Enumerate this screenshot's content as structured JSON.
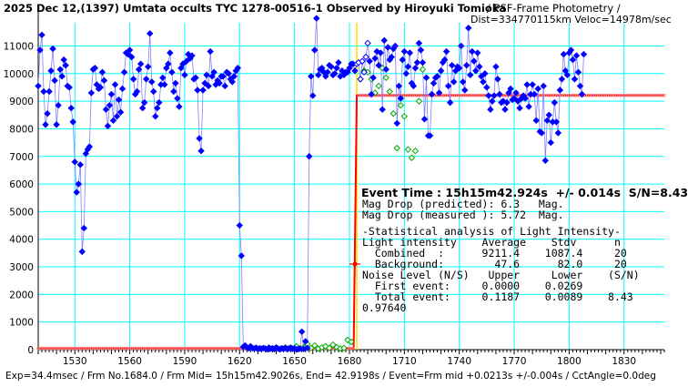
{
  "header": {
    "title": "2025 Dec 12,(1397) Umtata occults TYC 1278-00516-1 Observed by Hiroyuki Tomioka",
    "method": "/ PSF-Frame Photometry /",
    "distance": "Dist=334770115km Veloc=14978m/sec"
  },
  "footer": {
    "text": "Exp=34.4msec / Frm No.1684.0 / Frm Mid= 15h15m42.9026s, End= 42.9198s / Event=Frm mid +0.0213s +/-0.004s / CctAngle=0.0deg"
  },
  "panel": {
    "event_time": "Event Time : 15h15m42.924s  +/- 0.014s  S/N=8.43",
    "mag_drop_predicted": "Mag Drop (predicted): 6.3   Mag.",
    "mag_drop_measured": "Mag Drop (measured ): 5.72  Mag.",
    "stat_title": "-Statistical analysis of Light Intensity-",
    "stat_header": "Light intensity    Average    Stdv      n",
    "combined": "  Combined  :      9211.4    1087.4     20",
    "background": "  Background:        47.6      82.0     20",
    "noise_header": "Noise Level (N/S)   Upper     Lower    (S/N)",
    "first_event": "  First event:     0.0000    0.0269",
    "total_event": "  Total event:     0.1187    0.0089    8.43",
    "ratio": "0.97640"
  },
  "colors": {
    "grid": "#00ffff",
    "main_series": "#0000ff",
    "connector": "#8080ff",
    "comp_series": "#00aa00",
    "fit_line": "#ff0000",
    "fit_marker": "#ff8080",
    "event_line": "#ffdd00",
    "background": "#ffffff"
  },
  "chart_data": {
    "type": "scatter",
    "x_ticks": [
      1530,
      1560,
      1590,
      1620,
      1650,
      1680,
      1710,
      1740,
      1770,
      1800,
      1830
    ],
    "y_ticks": [
      0,
      1000,
      2000,
      3000,
      4000,
      5000,
      6000,
      7000,
      8000,
      9000,
      10000,
      11000
    ],
    "xlim": [
      1510,
      1852
    ],
    "ylim": [
      0,
      12500
    ],
    "grid": true,
    "event_frame": 1684,
    "fit": {
      "high": 9211.4,
      "low": 47.6,
      "drop_start": 1682.3,
      "rise_end": 1684.0
    },
    "series": [
      {
        "name": "",
        "color": "#0000ff",
        "x_start": 1510,
        "values": [
          9550,
          10850,
          11400,
          9350,
          8150,
          8550,
          9350,
          10100,
          10900,
          9750,
          8150,
          8850,
          10150,
          9900,
          10500,
          10300,
          9550,
          9500,
          8750,
          8250,
          6800,
          5700,
          6000,
          6700,
          3550,
          4400,
          7100,
          7250,
          7350,
          9300,
          10150,
          10200,
          9600,
          9450,
          9500,
          10050,
          9750,
          8700,
          8100,
          8850,
          9250,
          8300,
          9600,
          8450,
          9050,
          8600,
          9450,
          10050,
          10750,
          10700,
          10850,
          10600,
          9800,
          9250,
          9350,
          10150,
          10350,
          8750,
          8950,
          9800,
          10250,
          11450,
          9700,
          9350,
          8450,
          8750,
          8950,
          9600,
          9850,
          9600,
          10200,
          10350,
          10750,
          10050,
          9350,
          9650,
          9100,
          8800,
          10200,
          10350,
          9950,
          10450,
          10700,
          10550,
          10650,
          9800,
          9850,
          9400,
          7650,
          7200,
          9400,
          9650,
          9950,
          9550,
          10800,
          9900,
          10050,
          9600,
          9750,
          9650,
          9900,
          9900,
          9550,
          10050,
          10000,
          9800,
          9700,
          9900,
          10100,
          10200,
          4500,
          3400,
          100,
          150,
          80,
          50,
          120,
          60,
          40,
          70,
          20,
          50,
          30,
          60,
          40,
          10,
          70,
          30,
          50,
          20,
          80,
          40,
          10,
          50,
          30,
          60,
          20,
          40,
          70,
          30,
          50,
          10,
          20,
          40,
          650,
          30,
          300,
          60,
          7000,
          9900,
          9200,
          10850,
          12000,
          9950,
          10150,
          10200,
          10050,
          9900,
          10050,
          10300,
          10250,
          9950,
          10000,
          10200,
          10400,
          9900,
          10100,
          9950,
          10050,
          10050,
          10200,
          10350,
          10350,
          10100,
          10350,
          10400,
          9800,
          10450,
          10050,
          10600,
          11100,
          10450,
          9250,
          9850,
          10550,
          10800,
          10300,
          10750,
          8700,
          11200,
          10150,
          10950,
          10500,
          10600,
          10900,
          11000,
          8200,
          9550,
          9100,
          10500,
          10800,
          10000,
          10250,
          10750,
          9650,
          9550,
          10200,
          10400,
          11100,
          10850,
          10400,
          8350,
          9850,
          7750,
          7750,
          9250,
          9650,
          9850,
          9900,
          9300,
          10100,
          10400,
          10500,
          10800,
          9550,
          8950,
          10300,
          9700,
          10100,
          10250,
          10200,
          11000,
          9700,
          9400,
          10300,
          11650,
          9950,
          10800,
          10450,
          10100,
          10750,
          10250,
          9900,
          9700,
          10000,
          9500,
          9200,
          8700,
          9000,
          9200,
          10250,
          9800,
          9250,
          8950,
          9000,
          8700,
          8950,
          9300,
          9450,
          9050,
          9100,
          9300,
          9000,
          8750,
          9100,
          9200,
          9100,
          9600,
          8800,
          9250,
          9600,
          9250,
          8300,
          9450,
          7900,
          7850,
          9550,
          6850,
          8300,
          8500,
          7500,
          8250,
          8950,
          8250,
          7850,
          9400,
          9800,
          10700,
          10100,
          9950,
          10750,
          10850,
          10500,
          9800,
          10650,
          10050,
          9550,
          9250,
          10700
        ]
      },
      {
        "name": "",
        "color": "#00aa00",
        "x": [
          1645,
          1647,
          1649,
          1651,
          1653,
          1655,
          1657,
          1659,
          1661,
          1663,
          1665,
          1667,
          1669,
          1671,
          1673,
          1675,
          1677,
          1679,
          1681,
          1686,
          1688,
          1690,
          1692,
          1694,
          1696,
          1698,
          1700,
          1702,
          1704,
          1706,
          1708,
          1710,
          1712,
          1714,
          1716,
          1718,
          1720,
          1722
        ],
        "values": [
          80,
          50,
          30,
          120,
          40,
          90,
          200,
          60,
          150,
          40,
          80,
          120,
          60,
          180,
          90,
          40,
          60,
          350,
          280,
          9800,
          10100,
          10050,
          9800,
          9300,
          9550,
          10200,
          9850,
          9350,
          8550,
          7300,
          8850,
          8450,
          7250,
          6950,
          7200,
          9000,
          10150,
          9850
        ]
      }
    ]
  }
}
